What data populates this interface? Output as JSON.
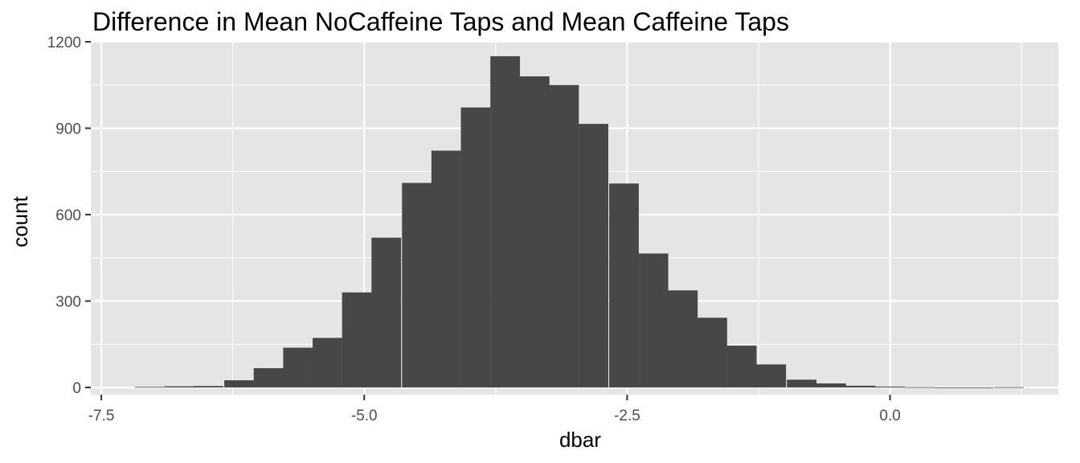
{
  "chart_data": {
    "type": "bar",
    "title": "Difference in Mean NoCaffeine Taps and Mean Caffeine Taps",
    "xlabel": "dbar",
    "ylabel": "count",
    "xlim": [
      -7.6,
      1.6
    ],
    "ylim": [
      -25,
      1200
    ],
    "x_ticks": [
      {
        "value": -7.5,
        "label": "-7.5"
      },
      {
        "value": -5.0,
        "label": "-5.0"
      },
      {
        "value": -2.5,
        "label": "-2.5"
      },
      {
        "value": 0.0,
        "label": "0.0"
      }
    ],
    "y_ticks": [
      {
        "value": 0,
        "label": "0"
      },
      {
        "value": 300,
        "label": "300"
      },
      {
        "value": 600,
        "label": "600"
      },
      {
        "value": 900,
        "label": "900"
      },
      {
        "value": 1200,
        "label": "1200"
      }
    ],
    "bin_width": 0.2816,
    "bins": [
      {
        "x": -7.04,
        "count": 2
      },
      {
        "x": -6.76,
        "count": 4
      },
      {
        "x": -6.48,
        "count": 5
      },
      {
        "x": -6.19,
        "count": 25
      },
      {
        "x": -5.91,
        "count": 67
      },
      {
        "x": -5.63,
        "count": 138
      },
      {
        "x": -5.35,
        "count": 172
      },
      {
        "x": -5.07,
        "count": 330
      },
      {
        "x": -4.79,
        "count": 520
      },
      {
        "x": -4.5,
        "count": 710
      },
      {
        "x": -4.22,
        "count": 822
      },
      {
        "x": -3.94,
        "count": 972
      },
      {
        "x": -3.66,
        "count": 1150
      },
      {
        "x": -3.38,
        "count": 1080
      },
      {
        "x": -3.1,
        "count": 1050
      },
      {
        "x": -2.82,
        "count": 915
      },
      {
        "x": -2.53,
        "count": 708
      },
      {
        "x": -2.25,
        "count": 465
      },
      {
        "x": -1.97,
        "count": 337
      },
      {
        "x": -1.69,
        "count": 242
      },
      {
        "x": -1.41,
        "count": 145
      },
      {
        "x": -1.13,
        "count": 80
      },
      {
        "x": -0.84,
        "count": 27
      },
      {
        "x": -0.56,
        "count": 14
      },
      {
        "x": -0.28,
        "count": 6
      },
      {
        "x": 0.0,
        "count": 3
      },
      {
        "x": 0.28,
        "count": 1
      },
      {
        "x": 0.56,
        "count": 0
      },
      {
        "x": 0.84,
        "count": 0
      },
      {
        "x": 1.13,
        "count": 1
      }
    ],
    "grid": true,
    "panel_color": "#E5E5E5",
    "grid_color": "#FFFFFF",
    "bar_color": "#474747",
    "tick_label_color": "#4D4D4D"
  }
}
